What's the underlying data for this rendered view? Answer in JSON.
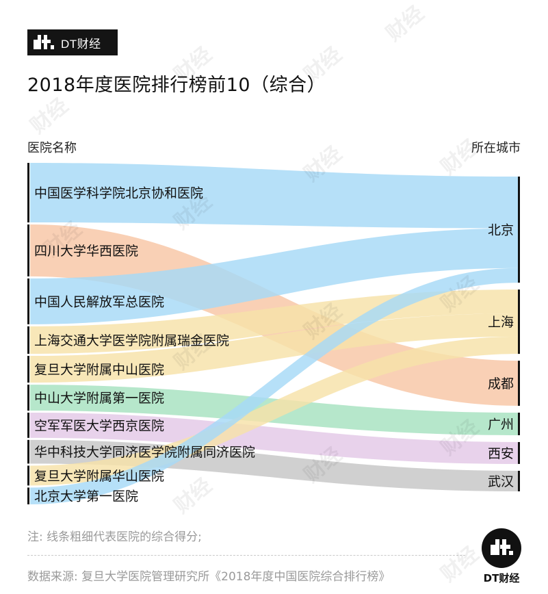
{
  "brand": {
    "name": "DT财经"
  },
  "title": "2018年度医院排行榜前10（综合）",
  "watermark": "财经",
  "chart_data": {
    "type": "sankey",
    "left_header": "医院名称",
    "right_header": "所在城市",
    "hospitals": [
      {
        "name": "中国医学科学院北京协和医院",
        "city": "北京",
        "weight": 78
      },
      {
        "name": "四川大学华西医院",
        "city": "成都",
        "weight": 68
      },
      {
        "name": "中国人民解放军总医院",
        "city": "北京",
        "weight": 60
      },
      {
        "name": "上海交通大学医学院附属瑞金医院",
        "city": "上海",
        "weight": 36
      },
      {
        "name": "复旦大学附属中山医院",
        "city": "上海",
        "weight": 35
      },
      {
        "name": "中山大学附属第一医院",
        "city": "广州",
        "weight": 34
      },
      {
        "name": "空军军医大学西京医院",
        "city": "西安",
        "weight": 33
      },
      {
        "name": "华中科技大学同济医学院附属同济医院",
        "city": "武汉",
        "weight": 31
      },
      {
        "name": "复旦大学附属华山医院",
        "city": "上海",
        "weight": 26
      },
      {
        "name": "北京大学第一医院",
        "city": "北京",
        "weight": 22
      }
    ],
    "cities": [
      "北京",
      "上海",
      "成都",
      "广州",
      "西安",
      "武汉"
    ],
    "city_colors": {
      "北京": "#a6d9f6",
      "上海": "#f6e2a8",
      "成都": "#f8c6a5",
      "广州": "#a6e2c0",
      "西安": "#e3c8e6",
      "武汉": "#c6c6c6"
    }
  },
  "note": "注: 线条粗细代表医院的综合得分;",
  "source": "数据来源: 复旦大学医院管理研究所《2018年度中国医院综合排行榜》",
  "footer_logo": "DT财经"
}
